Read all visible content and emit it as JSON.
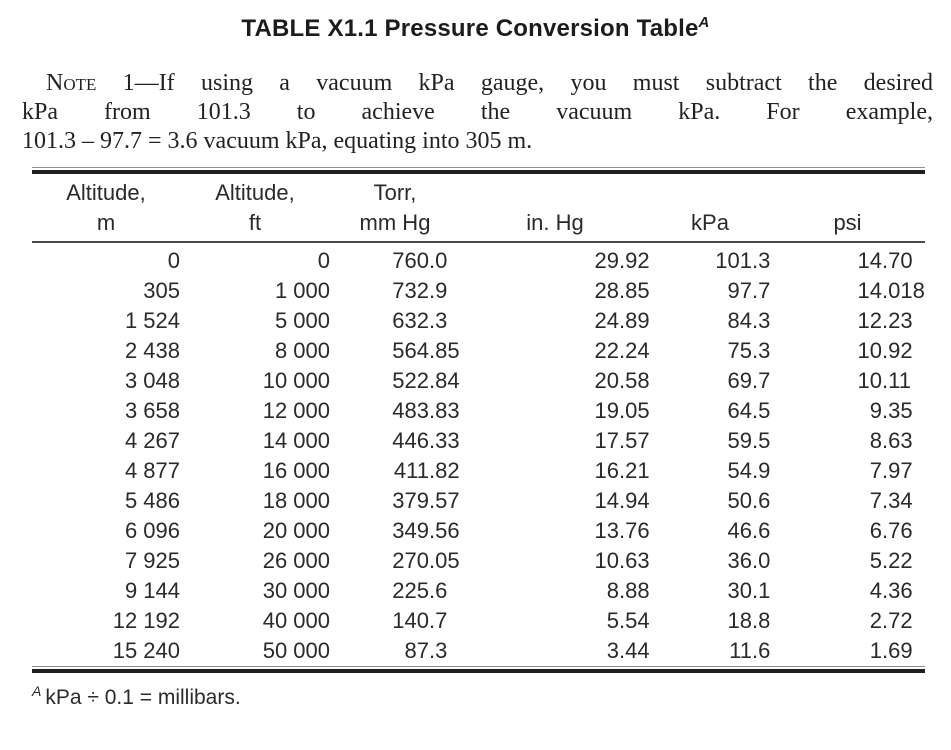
{
  "page": {
    "background": "#ffffff",
    "ink_color": "#1f1f1f",
    "rule_dark_color": "#1f1f1f",
    "rule_light_color": "#8f8f8f"
  },
  "title": {
    "text": "TABLE X1.1 Pressure Conversion Table",
    "footnote_ref": "A"
  },
  "note": {
    "label": "Note 1",
    "line1_rest": "—If using a vacuum kPa gauge, you must subtract the desired",
    "line2": "kPa from 101.3 to achieve the vacuum kPa. For example,",
    "line3": "101.3 – 97.7 = 3.6 vacuum kPa, equating into 305 m."
  },
  "table": {
    "columns": [
      {
        "line1": "Altitude,",
        "line2": "m"
      },
      {
        "line1": "Altitude,",
        "line2": "ft"
      },
      {
        "line1": "Torr,",
        "line2": "mm Hg"
      },
      {
        "line1": "",
        "line2": "in. Hg"
      },
      {
        "line1": "",
        "line2": "kPa"
      },
      {
        "line1": "",
        "line2": "psi"
      }
    ],
    "rows": [
      [
        "0",
        "0",
        "760.0",
        "29.92",
        "101.3",
        "14.70"
      ],
      [
        "305",
        "1 000",
        "732.9",
        "28.85",
        "97.7",
        "14.018"
      ],
      [
        "1 524",
        "5 000",
        "632.3",
        "24.89",
        "84.3",
        "12.23"
      ],
      [
        "2 438",
        "8 000",
        "564.85",
        "22.24",
        "75.3",
        "10.92"
      ],
      [
        "3 048",
        "10 000",
        "522.84",
        "20.58",
        "69.7",
        "10.11"
      ],
      [
        "3 658",
        "12 000",
        "483.83",
        "19.05",
        "64.5",
        "9.35"
      ],
      [
        "4 267",
        "14 000",
        "446.33",
        "17.57",
        "59.5",
        "8.63"
      ],
      [
        "4 877",
        "16 000",
        "411.82",
        "16.21",
        "54.9",
        "7.97"
      ],
      [
        "5 486",
        "18 000",
        "379.57",
        "14.94",
        "50.6",
        "7.34"
      ],
      [
        "6 096",
        "20 000",
        "349.56",
        "13.76",
        "46.6",
        "6.76"
      ],
      [
        "7 925",
        "26 000",
        "270.05",
        "10.63",
        "36.0",
        "5.22"
      ],
      [
        "9 144",
        "30 000",
        "225.6",
        "8.88",
        "30.1",
        "4.36"
      ],
      [
        "12 192",
        "40 000",
        "140.7",
        "5.54",
        "18.8",
        "2.72"
      ],
      [
        "15 240",
        "50 000",
        "87.3",
        "3.44",
        "11.6",
        "1.69"
      ]
    ]
  },
  "footnote": {
    "ref": "A",
    "text": "kPa ÷ 0.1 = millibars."
  }
}
